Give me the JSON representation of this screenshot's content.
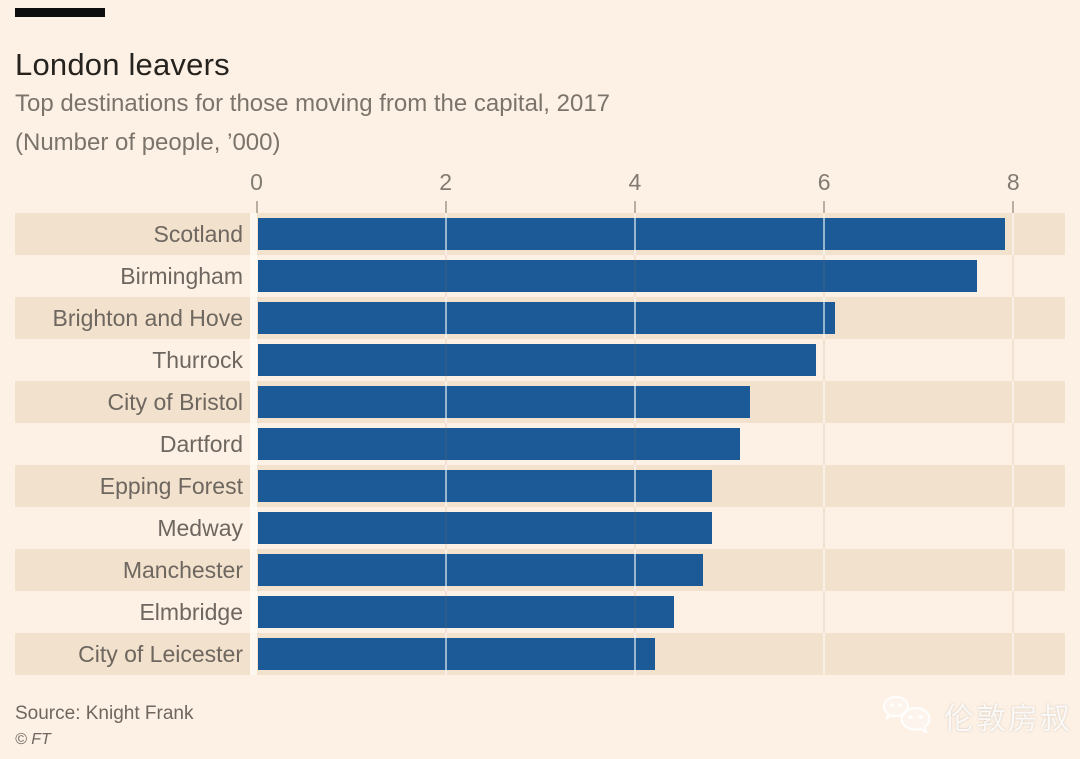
{
  "header": {
    "title": "London leavers",
    "subtitle_line1": "Top destinations for those moving from the capital, 2017",
    "subtitle_line2": "(Number of people, ’000)"
  },
  "chart_data": {
    "type": "bar",
    "orientation": "horizontal",
    "title": "London leavers",
    "subtitle": "Top destinations for those moving from the capital, 2017 (Number of people, ’000)",
    "categories": [
      "Scotland",
      "Birmingham",
      "Brighton and Hove",
      "Thurrock",
      "City of Bristol",
      "Dartford",
      "Epping Forest",
      "Medway",
      "Manchester",
      "Elmbridge",
      "City of Leicester"
    ],
    "values": [
      7.9,
      7.6,
      6.1,
      5.9,
      5.2,
      5.1,
      4.8,
      4.8,
      4.7,
      4.4,
      4.2
    ],
    "x_ticks": [
      0,
      2,
      4,
      6,
      8
    ],
    "xlim": [
      0,
      8.5
    ],
    "xlabel": "Number of people, '000",
    "ylabel": "",
    "grid": true,
    "legend": "none",
    "bar_color": "#1b5a96",
    "band_color": "#f2e1cc",
    "background_color": "#fdf1e5"
  },
  "footer": {
    "source": "Source: Knight Frank",
    "copyright": "© FT"
  },
  "watermark": {
    "icon": "wechat-icon",
    "text": "伦敦房叔"
  }
}
